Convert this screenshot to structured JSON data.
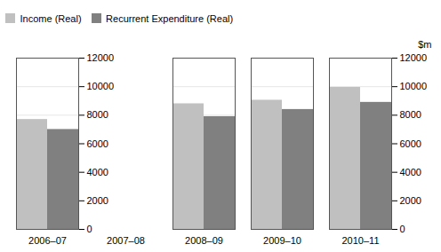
{
  "chart_data": {
    "type": "bar",
    "categories": [
      "2006–07",
      "2007–08",
      "2008–09",
      "2009–10",
      "2010–11"
    ],
    "series": [
      {
        "name": "Income (Real)",
        "color": "#c0c0c0",
        "values": [
          7700,
          null,
          8800,
          9050,
          9950
        ]
      },
      {
        "name": "Recurrent Expenditure (Real)",
        "color": "#808080",
        "values": [
          7000,
          null,
          7900,
          8400,
          8900
        ]
      }
    ],
    "ylabel": "$m",
    "ylim": [
      0,
      12000
    ],
    "yticks": [
      0,
      2000,
      4000,
      6000,
      8000,
      10000,
      12000
    ],
    "grid": true,
    "legend": "upper left"
  }
}
